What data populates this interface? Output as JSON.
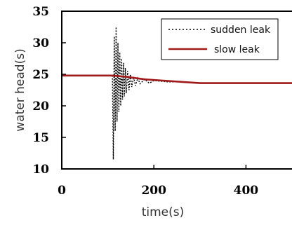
{
  "chart_data": {
    "type": "line",
    "xlabel": "time(s)",
    "ylabel": "water head(s)",
    "xlim": [
      0,
      500
    ],
    "ylim": [
      10,
      35
    ],
    "x_ticks": [
      0,
      200,
      400
    ],
    "y_ticks": [
      10,
      15,
      20,
      25,
      30,
      35
    ],
    "grid": false,
    "legend_placement": "top-right",
    "series": [
      {
        "name": "sudden leak",
        "style": "dotted",
        "color": "#000000",
        "x": [
          0,
          110,
          112,
          114,
          116,
          118,
          120,
          122,
          124,
          126,
          128,
          130,
          132,
          134,
          136,
          138,
          140,
          143,
          146,
          149,
          152,
          156,
          160,
          165,
          170,
          180,
          190,
          200,
          230,
          260,
          300,
          400,
          500
        ],
        "y": [
          24.8,
          24.8,
          11.5,
          31.0,
          16.0,
          32.5,
          17.5,
          30.0,
          19.0,
          28.5,
          20.0,
          27.5,
          21.0,
          26.8,
          21.5,
          26.0,
          22.0,
          25.5,
          22.5,
          25.0,
          23.0,
          24.6,
          23.2,
          24.4,
          23.5,
          24.2,
          23.6,
          24.0,
          23.8,
          23.8,
          23.6,
          23.6,
          23.6
        ]
      },
      {
        "name": "slow leak",
        "style": "solid",
        "color": "#a01a1a",
        "x": [
          0,
          110,
          140,
          180,
          220,
          260,
          300,
          400,
          500
        ],
        "y": [
          24.8,
          24.8,
          24.6,
          24.2,
          24.0,
          23.8,
          23.6,
          23.6,
          23.6
        ]
      }
    ]
  }
}
